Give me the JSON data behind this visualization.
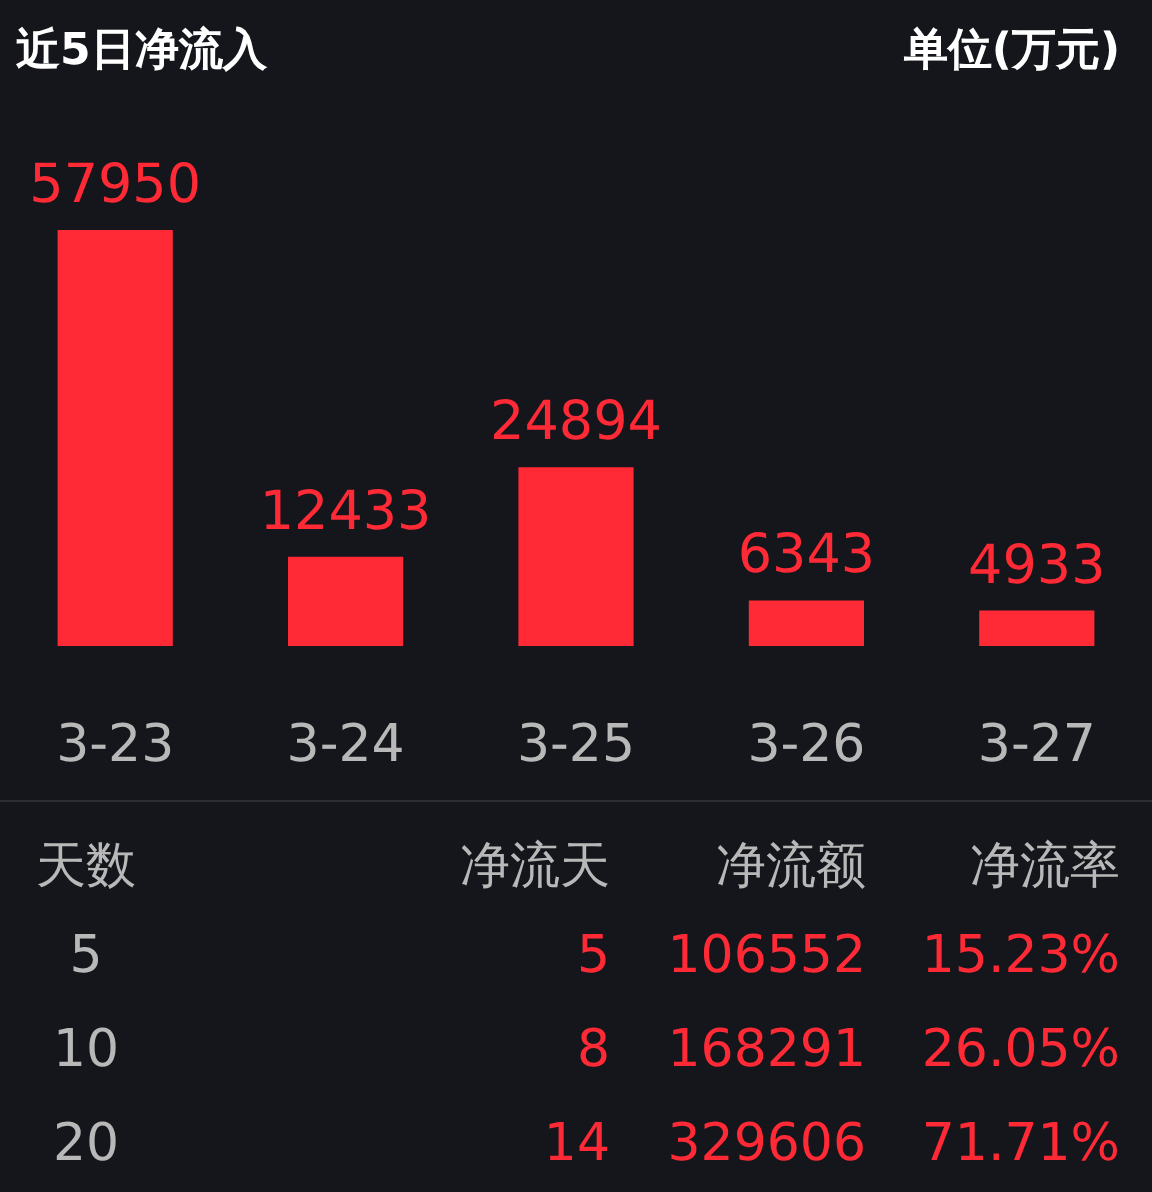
{
  "chart_data": [
    {
      "type": "bar",
      "title": "近5日净流入",
      "annotations": [
        "单位(万元)"
      ],
      "categories": [
        "3-23",
        "3-24",
        "3-25",
        "3-26",
        "3-27"
      ],
      "values": [
        57950,
        12433,
        24894,
        6343,
        4933
      ],
      "color": "#ff2a36",
      "data_labels": true
    },
    {
      "type": "other",
      "categories": [
        "天数",
        "净流天",
        "净流额",
        "净流率"
      ],
      "cell_labels": [
        [
          "5",
          "5",
          "106552",
          "15.23%"
        ],
        [
          "10",
          "8",
          "168291",
          "26.05%"
        ],
        [
          "20",
          "14",
          "329606",
          "71.71%"
        ]
      ]
    }
  ]
}
